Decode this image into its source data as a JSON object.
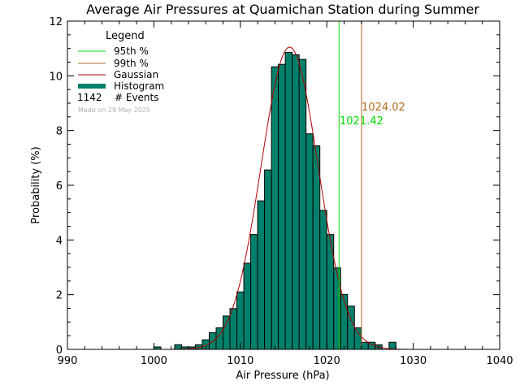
{
  "chart_data": {
    "type": "bar",
    "title": "Average Air Pressures at Quamichan Station during Summer",
    "xlabel": "Air Pressure (hPa)",
    "ylabel": "Probability (%)",
    "xlim": [
      990,
      1040
    ],
    "ylim": [
      0,
      12
    ],
    "x_ticks": [
      "990",
      "1000",
      "1010",
      "1020",
      "1030",
      "1040"
    ],
    "y_ticks": [
      "0",
      "2",
      "4",
      "6",
      "8",
      "10",
      "12"
    ],
    "histogram": {
      "name": "Histogram",
      "bin_width": 0.8,
      "bins": [
        {
          "x": 1000.0,
          "y": 0.09
        },
        {
          "x": 1002.4,
          "y": 0.17
        },
        {
          "x": 1003.2,
          "y": 0.09
        },
        {
          "x": 1004.0,
          "y": 0.09
        },
        {
          "x": 1004.8,
          "y": 0.17
        },
        {
          "x": 1005.6,
          "y": 0.35
        },
        {
          "x": 1006.4,
          "y": 0.61
        },
        {
          "x": 1007.2,
          "y": 0.79
        },
        {
          "x": 1008.0,
          "y": 1.22
        },
        {
          "x": 1008.8,
          "y": 1.49
        },
        {
          "x": 1009.6,
          "y": 2.1
        },
        {
          "x": 1010.4,
          "y": 3.15
        },
        {
          "x": 1011.2,
          "y": 4.2
        },
        {
          "x": 1012.0,
          "y": 5.43
        },
        {
          "x": 1012.8,
          "y": 6.56
        },
        {
          "x": 1013.6,
          "y": 10.33
        },
        {
          "x": 1014.4,
          "y": 10.42
        },
        {
          "x": 1015.2,
          "y": 10.86
        },
        {
          "x": 1016.0,
          "y": 10.77
        },
        {
          "x": 1016.8,
          "y": 10.6
        },
        {
          "x": 1017.6,
          "y": 7.88
        },
        {
          "x": 1018.4,
          "y": 7.44
        },
        {
          "x": 1019.2,
          "y": 5.08
        },
        {
          "x": 1020.0,
          "y": 4.2
        },
        {
          "x": 1020.8,
          "y": 2.98
        },
        {
          "x": 1021.6,
          "y": 2.01
        },
        {
          "x": 1022.4,
          "y": 1.58
        },
        {
          "x": 1023.2,
          "y": 0.79
        },
        {
          "x": 1024.0,
          "y": 0.26
        },
        {
          "x": 1024.8,
          "y": 0.26
        },
        {
          "x": 1025.6,
          "y": 0.17
        },
        {
          "x": 1027.2,
          "y": 0.26
        }
      ]
    },
    "gaussian": {
      "name": "Gaussian",
      "mean": 1015.7,
      "sigma": 3.3,
      "peak": 11.05
    },
    "percentiles": [
      {
        "name": "95th %",
        "value": 1021.42,
        "label": "1021.42",
        "color": "#00dd00"
      },
      {
        "name": "99th %",
        "value": 1024.02,
        "label": "1024.02",
        "color": "#b36a1e"
      }
    ],
    "legend": {
      "title": "Legend",
      "position": "top-left",
      "entries": [
        "95th %",
        "99th %",
        "Gaussian",
        "Histogram"
      ],
      "events_count": "1142",
      "events_label": "# Events"
    },
    "made_on": "Made on 29 May 2025",
    "colors": {
      "histogram_fill": "#00806a",
      "gaussian": "#b00000",
      "p95": "#00dd00",
      "p99": "#b36a1e"
    },
    "grid": false
  }
}
